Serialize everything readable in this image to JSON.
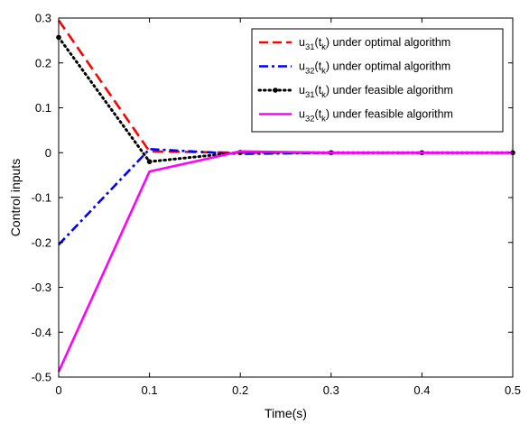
{
  "chart_data": {
    "type": "line",
    "title": "",
    "xlabel": "Time(s)",
    "ylabel": "Control inputs",
    "xlim": [
      0,
      0.5
    ],
    "ylim": [
      -0.5,
      0.3
    ],
    "xticks": [
      0,
      0.1,
      0.2,
      0.3,
      0.4,
      0.5
    ],
    "xtick_labels": [
      "0",
      "0.1",
      "0.2",
      "0.3",
      "0.4",
      "0.5"
    ],
    "yticks": [
      -0.5,
      -0.4,
      -0.3,
      -0.2,
      -0.1,
      0,
      0.1,
      0.2,
      0.3
    ],
    "ytick_labels": [
      "-0.5",
      "-0.4",
      "-0.3",
      "-0.2",
      "-0.1",
      "0",
      "0.1",
      "0.2",
      "0.3"
    ],
    "grid": false,
    "legend_position": "top-right",
    "x": [
      0,
      0.1,
      0.2,
      0.3,
      0.4,
      0.5
    ],
    "series": [
      {
        "name": "u31(tk) under optimal algorithm",
        "label": {
          "main": "u",
          "sub1": "31",
          "mid": "(t",
          "sub2": "k",
          "rest": ") under optimal algorithm"
        },
        "values": [
          0.295,
          0.003,
          0.0,
          0.0,
          0.0,
          0.0
        ],
        "color": "#ff0000",
        "style": "dashed",
        "marker": "none"
      },
      {
        "name": "u32(tk) under optimal algorithm",
        "label": {
          "main": "u",
          "sub1": "32",
          "mid": "(t",
          "sub2": "k",
          "rest": ") under optimal algorithm"
        },
        "values": [
          -0.205,
          0.008,
          -0.003,
          0.0,
          0.0,
          0.0
        ],
        "color": "#0000ff",
        "style": "dashdot",
        "marker": "none"
      },
      {
        "name": "u31(tk) under feasible algorithm",
        "label": {
          "main": "u",
          "sub1": "31",
          "mid": "(t",
          "sub2": "k",
          "rest": ") under feasible algorithm"
        },
        "values": [
          0.257,
          -0.02,
          0.001,
          0.0,
          0.0,
          0.0
        ],
        "color": "#000000",
        "style": "dotted",
        "marker": "dot"
      },
      {
        "name": "u32(tk) under feasible algorithm",
        "label": {
          "main": "u",
          "sub1": "32",
          "mid": "(t",
          "sub2": "k",
          "rest": ") under feasible algorithm"
        },
        "values": [
          -0.488,
          -0.042,
          0.003,
          0.0,
          0.0,
          0.0
        ],
        "color": "#ff00ff",
        "style": "solid",
        "marker": "none"
      }
    ]
  }
}
